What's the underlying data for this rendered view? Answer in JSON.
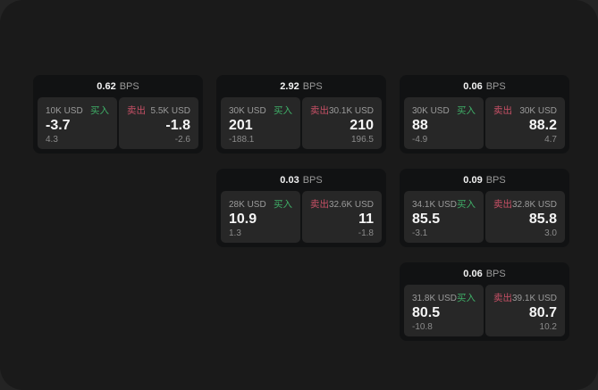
{
  "labels": {
    "bps": "BPS",
    "buy": "买入",
    "sell": "卖出"
  },
  "colors": {
    "buy_green": "#3fae67",
    "sell_red": "#c75066",
    "window_bg": "#1a1a1a",
    "card_bg": "#111213",
    "panel_bg": "#272727"
  },
  "cards": [
    {
      "bps": "0.62",
      "buy": {
        "amount": "10K USD",
        "main": "-3.7",
        "sub": "4.3"
      },
      "sell": {
        "amount": "5.5K USD",
        "main": "-1.8",
        "sub": "-2.6"
      }
    },
    {
      "bps": "2.92",
      "buy": {
        "amount": "30K USD",
        "main": "201",
        "sub": "-188.1"
      },
      "sell": {
        "amount": "30.1K USD",
        "main": "210",
        "sub": "196.5"
      }
    },
    {
      "bps": "0.06",
      "buy": {
        "amount": "30K USD",
        "main": "88",
        "sub": "-4.9"
      },
      "sell": {
        "amount": "30K USD",
        "main": "88.2",
        "sub": "4.7"
      }
    },
    {
      "bps": "0.03",
      "buy": {
        "amount": "28K USD",
        "main": "10.9",
        "sub": "1.3"
      },
      "sell": {
        "amount": "32.6K USD",
        "main": "11",
        "sub": "-1.8"
      }
    },
    {
      "bps": "0.09",
      "buy": {
        "amount": "34.1K USD",
        "main": "85.5",
        "sub": "-3.1"
      },
      "sell": {
        "amount": "32.8K USD",
        "main": "85.8",
        "sub": "3.0"
      }
    },
    {
      "bps": "0.06",
      "buy": {
        "amount": "31.8K USD",
        "main": "80.5",
        "sub": "-10.8"
      },
      "sell": {
        "amount": "39.1K USD",
        "main": "80.7",
        "sub": "10.2"
      }
    }
  ]
}
